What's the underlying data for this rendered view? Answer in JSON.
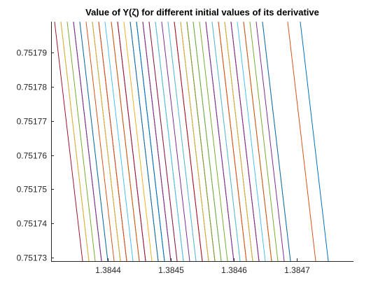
{
  "chart_data": {
    "type": "line",
    "title": "Value of Y(ζ) for different initial values of its derivative",
    "xlabel": "",
    "ylabel": "",
    "xlim": [
      1.38431,
      1.38479
    ],
    "ylim": [
      0.751729,
      0.751799
    ],
    "x_ticks": [
      1.3844,
      1.3845,
      1.3846,
      1.3847
    ],
    "x_tick_labels": [
      "1.3844",
      "1.3845",
      "1.3846",
      "1.3847"
    ],
    "y_ticks": [
      0.75173,
      0.75174,
      0.75175,
      0.75176,
      0.75177,
      0.75178,
      0.75179
    ],
    "y_tick_labels": [
      "0.75173",
      "0.75174",
      "0.75175",
      "0.75176",
      "0.75177",
      "0.75178",
      "0.75179"
    ],
    "grid": false,
    "legend": "none",
    "box": false,
    "line_slope": -1.574,
    "series_colors": [
      "#0072bd",
      "#d95319",
      "#edb120",
      "#7e2f8e",
      "#77ac30",
      "#4dbeee",
      "#a2142f"
    ],
    "series_x_at_ymin": [
      1.38475,
      1.38473,
      1.38469,
      1.38468,
      1.38466,
      1.38465,
      1.38464,
      1.38463,
      1.38462,
      1.38461,
      1.3846,
      1.38459,
      1.38458,
      1.38457,
      1.38456,
      1.38455,
      1.38454,
      1.38453,
      1.38452,
      1.38451,
      1.3845,
      1.38449,
      1.38448,
      1.38447,
      1.38446,
      1.38445,
      1.38444,
      1.38443,
      1.38442,
      1.38441,
      1.3844,
      1.38439,
      1.38438,
      1.38437,
      1.38436,
      1.38469,
      1.38466,
      1.38463,
      1.3846,
      1.38457,
      1.38454,
      1.38451,
      1.38448,
      1.38445,
      1.38442,
      1.38439,
      1.38467,
      1.38461,
      1.38455,
      1.38449,
      1.38443,
      1.38437,
      1.38464,
      1.38458,
      1.38452,
      1.38446,
      1.3844,
      1.38462,
      1.38456,
      1.3845
    ]
  }
}
